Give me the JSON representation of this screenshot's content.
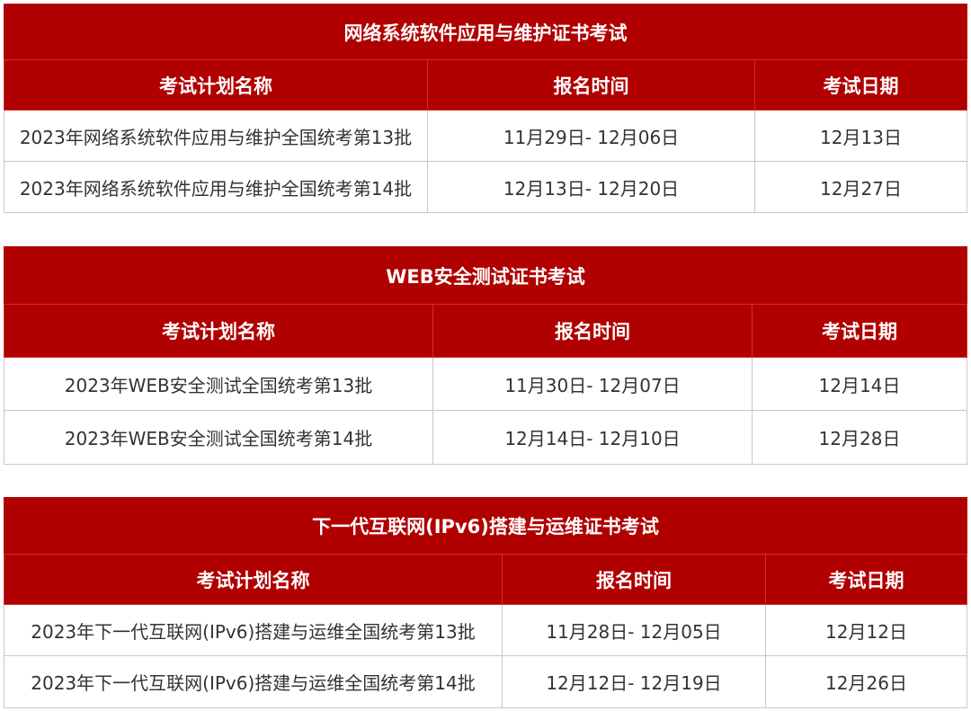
{
  "colors": {
    "header_bg": "#B00000",
    "header_text": "#FFFFFF",
    "cell_text": "#333333"
  },
  "headers": [
    "考试计划名称",
    "报名时间",
    "考试日期"
  ],
  "tables": [
    {
      "title": "网络系统软件应用与维护证书考试",
      "rows": [
        [
          "2023年网络系统软件应用与维护全国统考第13批",
          "11月29日- 12月06日",
          "12月13日"
        ],
        [
          "2023年网络系统软件应用与维护全国统考第14批",
          "12月13日- 12月20日",
          "12月27日"
        ]
      ]
    },
    {
      "title": "WEB安全测试证书考试",
      "rows": [
        [
          "2023年WEB安全测试全国统考第13批",
          "11月30日- 12月07日",
          "12月14日"
        ],
        [
          "2023年WEB安全测试全国统考第14批",
          "12月14日- 12月10日",
          "12月28日"
        ]
      ]
    },
    {
      "title": "下一代互联网(IPv6)搭建与运维证书考试",
      "rows": [
        [
          "2023年下一代互联网(IPv6)搭建与运维全国统考第13批",
          "11月28日- 12月05日",
          "12月12日"
        ],
        [
          "2023年下一代互联网(IPv6)搭建与运维全国统考第14批",
          "12月12日- 12月19日",
          "12月26日"
        ]
      ]
    }
  ]
}
